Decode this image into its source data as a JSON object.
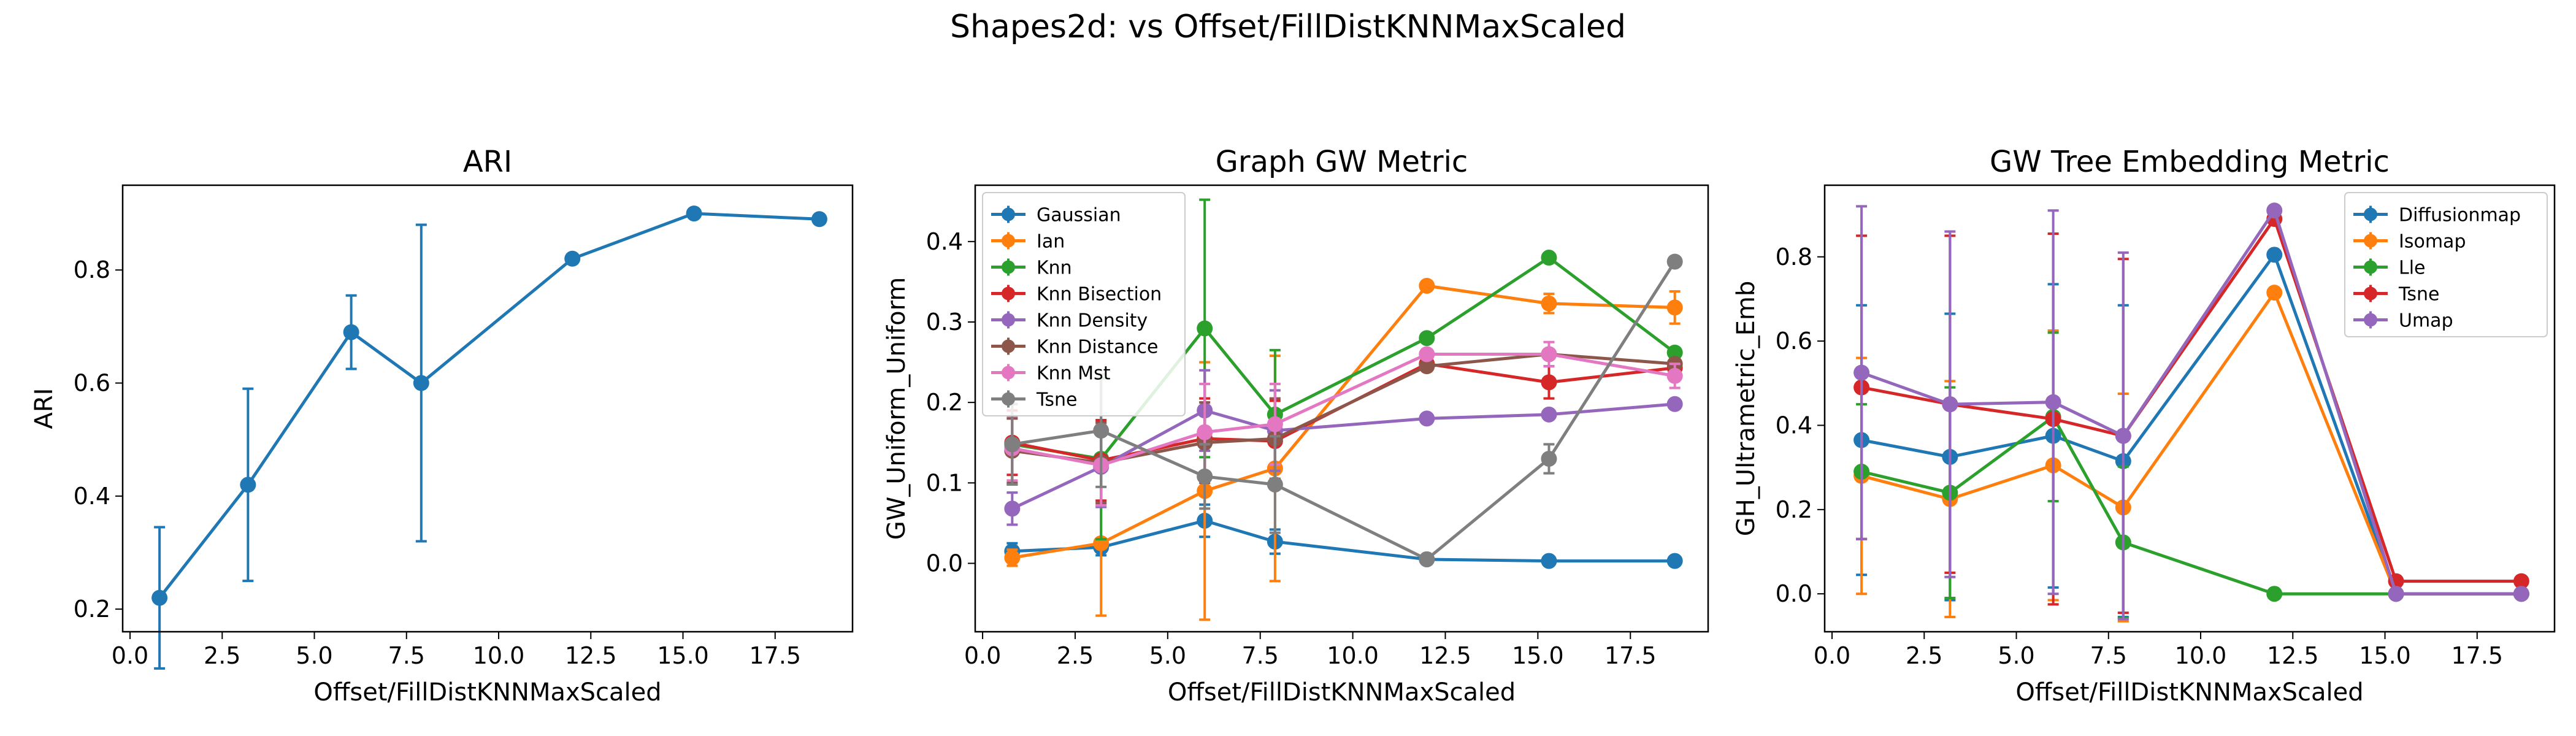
{
  "figure": {
    "title": "Shapes2d: vs Offset/FillDistKNNMaxScaled"
  },
  "chart_data": [
    {
      "type": "line",
      "title": "ARI",
      "xlabel": "Offset/FillDistKNNMaxScaled",
      "ylabel": "ARI",
      "xlim": [
        -0.2,
        19.6
      ],
      "ylim": [
        0.16,
        0.95
      ],
      "xticks": [
        0.0,
        2.5,
        5.0,
        7.5,
        10.0,
        12.5,
        15.0,
        17.5
      ],
      "xtick_labels": [
        "0.0",
        "2.5",
        "5.0",
        "7.5",
        "10.0",
        "12.5",
        "15.0",
        "17.5"
      ],
      "yticks": [
        0.2,
        0.4,
        0.6,
        0.8
      ],
      "ytick_labels": [
        "0.2",
        "0.4",
        "0.6",
        "0.8"
      ],
      "legend": null,
      "series": [
        {
          "color": "#1f77b4",
          "x": [
            0.8,
            3.2,
            6.0,
            7.9,
            12.0,
            15.3,
            18.7
          ],
          "y": [
            0.22,
            0.42,
            0.69,
            0.6,
            0.82,
            0.9,
            0.89
          ],
          "err": [
            0.125,
            0.17,
            0.065,
            0.28,
            0,
            0,
            0
          ]
        }
      ]
    },
    {
      "type": "line",
      "title": "Graph GW Metric",
      "xlabel": "Offset/FillDistKNNMaxScaled",
      "ylabel": "GW_Uniform_Uniform",
      "xlim": [
        -0.2,
        19.6
      ],
      "ylim": [
        -0.085,
        0.47
      ],
      "xticks": [
        0.0,
        2.5,
        5.0,
        7.5,
        10.0,
        12.5,
        15.0,
        17.5
      ],
      "xtick_labels": [
        "0.0",
        "2.5",
        "5.0",
        "7.5",
        "10.0",
        "12.5",
        "15.0",
        "17.5"
      ],
      "yticks": [
        0.0,
        0.1,
        0.2,
        0.3,
        0.4
      ],
      "ytick_labels": [
        "0.0",
        "0.1",
        "0.2",
        "0.3",
        "0.4"
      ],
      "legend": "top-left",
      "series": [
        {
          "name": "Gaussian",
          "color": "#1f77b4",
          "x": [
            0.8,
            3.2,
            6.0,
            7.9,
            12.0,
            15.3,
            18.7
          ],
          "y": [
            0.015,
            0.02,
            0.053,
            0.027,
            0.005,
            0.003,
            0.003
          ],
          "err": [
            0.01,
            0.01,
            0.02,
            0.015,
            0,
            0,
            0
          ]
        },
        {
          "name": "Ian",
          "color": "#ff7f0e",
          "x": [
            0.8,
            3.2,
            6.0,
            7.9,
            12.0,
            15.3,
            18.7
          ],
          "y": [
            0.007,
            0.025,
            0.09,
            0.118,
            0.345,
            0.323,
            0.318
          ],
          "err": [
            0.01,
            0.09,
            0.16,
            0.14,
            0,
            0.012,
            0.02
          ]
        },
        {
          "name": "Knn",
          "color": "#2ca02c",
          "x": [
            0.8,
            3.2,
            6.0,
            7.9,
            12.0,
            15.3,
            18.7
          ],
          "y": [
            0.148,
            0.13,
            0.292,
            0.185,
            0.28,
            0.38,
            0.262
          ],
          "err": [
            0.05,
            0.1,
            0.16,
            0.08,
            0,
            0,
            0
          ]
        },
        {
          "name": "Knn Bisection",
          "color": "#d62728",
          "x": [
            0.8,
            3.2,
            6.0,
            7.9,
            12.0,
            15.3,
            18.7
          ],
          "y": [
            0.15,
            0.128,
            0.155,
            0.152,
            0.248,
            0.225,
            0.243
          ],
          "err": [
            0.04,
            0.05,
            0.05,
            0.05,
            0,
            0.02,
            0.01
          ]
        },
        {
          "name": "Knn Density",
          "color": "#9467bd",
          "x": [
            0.8,
            3.2,
            6.0,
            7.9,
            12.0,
            15.3,
            18.7
          ],
          "y": [
            0.068,
            0.12,
            0.19,
            0.165,
            0.18,
            0.185,
            0.198
          ],
          "err": [
            0.02,
            0.05,
            0.05,
            0.05,
            0,
            0,
            0
          ]
        },
        {
          "name": "Knn Distance",
          "color": "#8c564b",
          "x": [
            0.8,
            3.2,
            6.0,
            7.9,
            12.0,
            15.3,
            18.7
          ],
          "y": [
            0.14,
            0.125,
            0.15,
            0.155,
            0.245,
            0.26,
            0.248
          ],
          "err": [
            0.04,
            0.05,
            0.05,
            0.05,
            0,
            0,
            0
          ]
        },
        {
          "name": "Knn Mst",
          "color": "#e377c2",
          "x": [
            0.8,
            3.2,
            6.0,
            7.9,
            12.0,
            15.3,
            18.7
          ],
          "y": [
            0.143,
            0.122,
            0.163,
            0.173,
            0.26,
            0.26,
            0.233
          ],
          "err": [
            0.04,
            0.05,
            0.06,
            0.05,
            0,
            0.015,
            0.015
          ]
        },
        {
          "name": "Tsne",
          "color": "#7f7f7f",
          "x": [
            0.8,
            3.2,
            6.0,
            7.9,
            12.0,
            15.3,
            18.7
          ],
          "y": [
            0.148,
            0.165,
            0.108,
            0.098,
            0.005,
            0.13,
            0.375
          ],
          "err": [
            0.05,
            0.07,
            0.04,
            0.06,
            0,
            0.018,
            0
          ]
        }
      ]
    },
    {
      "type": "line",
      "title": "GW Tree Embedding Metric",
      "xlabel": "Offset/FillDistKNNMaxScaled",
      "ylabel": "GH_Ultrametric_Emb",
      "xlim": [
        -0.2,
        19.6
      ],
      "ylim": [
        -0.09,
        0.97
      ],
      "xticks": [
        0.0,
        2.5,
        5.0,
        7.5,
        10.0,
        12.5,
        15.0,
        17.5
      ],
      "xtick_labels": [
        "0.0",
        "2.5",
        "5.0",
        "7.5",
        "10.0",
        "12.5",
        "15.0",
        "17.5"
      ],
      "yticks": [
        0.0,
        0.2,
        0.4,
        0.6,
        0.8
      ],
      "ytick_labels": [
        "0.0",
        "0.2",
        "0.4",
        "0.6",
        "0.8"
      ],
      "legend": "top-right",
      "series": [
        {
          "name": "Diffusionmap",
          "color": "#1f77b4",
          "x": [
            0.8,
            3.2,
            6.0,
            7.9,
            12.0,
            15.3,
            18.7
          ],
          "y": [
            0.365,
            0.325,
            0.375,
            0.315,
            0.805,
            0.0,
            0.0
          ],
          "err": [
            0.32,
            0.34,
            0.36,
            0.37,
            0,
            0,
            0
          ]
        },
        {
          "name": "Isomap",
          "color": "#ff7f0e",
          "x": [
            0.8,
            3.2,
            6.0,
            7.9,
            12.0,
            15.3,
            18.7
          ],
          "y": [
            0.28,
            0.225,
            0.305,
            0.205,
            0.715,
            0.0,
            0.0
          ],
          "err": [
            0.28,
            0.28,
            0.32,
            0.27,
            0,
            0,
            0
          ]
        },
        {
          "name": "Lle",
          "color": "#2ca02c",
          "x": [
            0.8,
            3.2,
            6.0,
            7.9,
            12.0,
            15.3,
            18.7
          ],
          "y": [
            0.29,
            0.24,
            0.42,
            0.122,
            0.0,
            0.0,
            0.0
          ],
          "err": [
            0.16,
            0.25,
            0.2,
            0.18,
            0,
            0,
            0
          ]
        },
        {
          "name": "Tsne",
          "color": "#d62728",
          "x": [
            0.8,
            3.2,
            6.0,
            7.9,
            12.0,
            15.3,
            18.7
          ],
          "y": [
            0.49,
            0.45,
            0.415,
            0.375,
            0.89,
            0.03,
            0.03
          ],
          "err": [
            0.36,
            0.4,
            0.44,
            0.42,
            0,
            0,
            0
          ]
        },
        {
          "name": "Umap",
          "color": "#9467bd",
          "x": [
            0.8,
            3.2,
            6.0,
            7.9,
            12.0,
            15.3,
            18.7
          ],
          "y": [
            0.525,
            0.45,
            0.455,
            0.375,
            0.91,
            0.0,
            0.0
          ],
          "err": [
            0.395,
            0.41,
            0.455,
            0.435,
            0,
            0,
            0
          ]
        }
      ]
    }
  ]
}
